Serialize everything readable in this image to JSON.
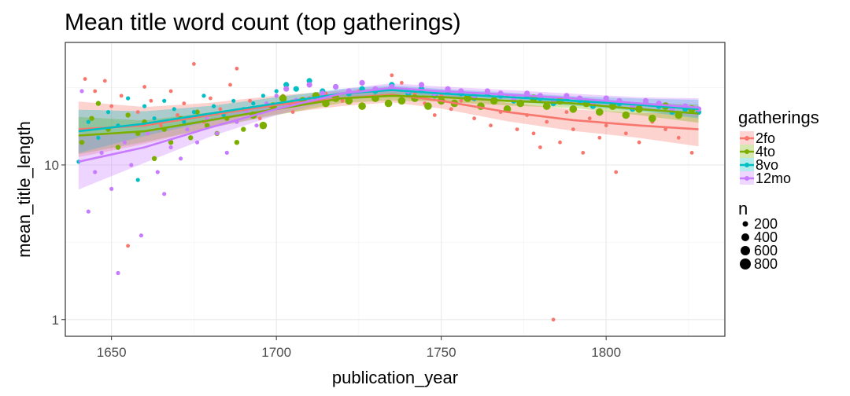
{
  "chart_data": {
    "type": "scatter",
    "title": "Mean title word count (top gatherings)",
    "xlabel": "publication_year",
    "ylabel": "mean_title_length",
    "xlim": [
      1636,
      1836
    ],
    "ylim": [
      0.78,
      62
    ],
    "y_scale": "log10",
    "x_ticks": [
      1650,
      1700,
      1750,
      1800
    ],
    "y_ticks": [
      1,
      10
    ],
    "grid": true,
    "legend_placement": "right",
    "colors": {
      "2fo": "#F8766D",
      "4to": "#7CAE00",
      "8vo": "#00BFC4",
      "12mo": "#C77CFF",
      "panel_border": "#333333",
      "grid_major": "#ebebeb",
      "grid_minor": "#f5f5f5"
    },
    "series": [
      {
        "name": "2fo",
        "smooth": [
          [
            1640,
            17
          ],
          [
            1660,
            18
          ],
          [
            1680,
            21
          ],
          [
            1700,
            24.5
          ],
          [
            1720,
            27
          ],
          [
            1735,
            28.5
          ],
          [
            1750,
            26
          ],
          [
            1770,
            22
          ],
          [
            1790,
            19.5
          ],
          [
            1810,
            18
          ],
          [
            1828,
            17
          ]
        ],
        "ci_width": [
          0.18,
          0.12,
          0.08,
          0.06,
          0.05,
          0.05,
          0.05,
          0.06,
          0.07,
          0.08,
          0.11
        ],
        "points": [
          [
            1642,
            36
          ],
          [
            1645,
            30
          ],
          [
            1648,
            35
          ],
          [
            1650,
            24
          ],
          [
            1653,
            28
          ],
          [
            1655,
            3
          ],
          [
            1658,
            22
          ],
          [
            1660,
            32
          ],
          [
            1662,
            26
          ],
          [
            1665,
            18
          ],
          [
            1668,
            30
          ],
          [
            1670,
            21
          ],
          [
            1672,
            25
          ],
          [
            1675,
            45
          ],
          [
            1678,
            19
          ],
          [
            1680,
            27
          ],
          [
            1683,
            23
          ],
          [
            1686,
            33
          ],
          [
            1688,
            42
          ],
          [
            1692,
            26
          ],
          [
            1695,
            20
          ],
          [
            1698,
            24
          ],
          [
            1702,
            28
          ],
          [
            1705,
            22
          ],
          [
            1710,
            27
          ],
          [
            1715,
            29
          ],
          [
            1720,
            26
          ],
          [
            1725,
            30
          ],
          [
            1730,
            27
          ],
          [
            1735,
            38
          ],
          [
            1738,
            34
          ],
          [
            1742,
            29
          ],
          [
            1745,
            25
          ],
          [
            1748,
            21
          ],
          [
            1750,
            28
          ],
          [
            1753,
            23
          ],
          [
            1756,
            26
          ],
          [
            1760,
            20
          ],
          [
            1762,
            24
          ],
          [
            1765,
            18
          ],
          [
            1768,
            22
          ],
          [
            1770,
            28
          ],
          [
            1773,
            17
          ],
          [
            1776,
            21
          ],
          [
            1778,
            16
          ],
          [
            1780,
            13
          ],
          [
            1782,
            19
          ],
          [
            1784,
            1
          ],
          [
            1786,
            14
          ],
          [
            1788,
            22
          ],
          [
            1790,
            17
          ],
          [
            1793,
            12
          ],
          [
            1795,
            20
          ],
          [
            1798,
            15
          ],
          [
            1800,
            18
          ],
          [
            1803,
            9
          ],
          [
            1806,
            16
          ],
          [
            1810,
            14
          ],
          [
            1814,
            19
          ],
          [
            1818,
            17
          ],
          [
            1822,
            15
          ],
          [
            1826,
            12
          ]
        ]
      },
      {
        "name": "4to",
        "smooth": [
          [
            1640,
            15.5
          ],
          [
            1660,
            16.5
          ],
          [
            1680,
            19.5
          ],
          [
            1700,
            23
          ],
          [
            1720,
            27
          ],
          [
            1735,
            28
          ],
          [
            1750,
            27.5
          ],
          [
            1770,
            26
          ],
          [
            1790,
            25
          ],
          [
            1810,
            23
          ],
          [
            1828,
            21.5
          ]
        ],
        "ci_width": [
          0.12,
          0.07,
          0.05,
          0.04,
          0.03,
          0.03,
          0.03,
          0.03,
          0.03,
          0.04,
          0.06
        ],
        "points": [
          [
            1641,
            14
          ],
          [
            1644,
            20
          ],
          [
            1646,
            25
          ],
          [
            1649,
            17
          ],
          [
            1652,
            13
          ],
          [
            1655,
            21
          ],
          [
            1658,
            16
          ],
          [
            1660,
            19
          ],
          [
            1663,
            11
          ],
          [
            1666,
            17
          ],
          [
            1668,
            14
          ],
          [
            1671,
            20
          ],
          [
            1674,
            15
          ],
          [
            1676,
            22
          ],
          [
            1679,
            18
          ],
          [
            1682,
            16
          ],
          [
            1685,
            20
          ],
          [
            1688,
            14
          ],
          [
            1690,
            17
          ],
          [
            1693,
            21
          ],
          [
            1696,
            18
          ],
          [
            1699,
            24
          ],
          [
            1702,
            27
          ],
          [
            1705,
            25
          ],
          [
            1708,
            26
          ],
          [
            1712,
            28
          ],
          [
            1715,
            25
          ],
          [
            1718,
            27
          ],
          [
            1722,
            26
          ],
          [
            1726,
            24
          ],
          [
            1730,
            27
          ],
          [
            1734,
            25
          ],
          [
            1738,
            26
          ],
          [
            1742,
            27
          ],
          [
            1746,
            24
          ],
          [
            1750,
            26
          ],
          [
            1754,
            25
          ],
          [
            1758,
            27
          ],
          [
            1762,
            24
          ],
          [
            1766,
            26
          ],
          [
            1770,
            23
          ],
          [
            1774,
            25
          ],
          [
            1778,
            27
          ],
          [
            1782,
            24
          ],
          [
            1786,
            26
          ],
          [
            1790,
            23
          ],
          [
            1794,
            25
          ],
          [
            1798,
            22
          ],
          [
            1802,
            24
          ],
          [
            1806,
            21
          ],
          [
            1810,
            23
          ],
          [
            1814,
            20
          ],
          [
            1818,
            24
          ],
          [
            1822,
            21
          ],
          [
            1826,
            23
          ]
        ]
      },
      {
        "name": "8vo",
        "smooth": [
          [
            1640,
            16.5
          ],
          [
            1660,
            18.5
          ],
          [
            1680,
            21.5
          ],
          [
            1700,
            25
          ],
          [
            1720,
            29
          ],
          [
            1735,
            30.5
          ],
          [
            1750,
            29
          ],
          [
            1770,
            27.5
          ],
          [
            1790,
            26
          ],
          [
            1810,
            24.5
          ],
          [
            1828,
            23
          ]
        ],
        "ci_width": [
          0.14,
          0.08,
          0.05,
          0.04,
          0.03,
          0.03,
          0.03,
          0.03,
          0.03,
          0.04,
          0.06
        ],
        "points": [
          [
            1640,
            10.5
          ],
          [
            1643,
            19
          ],
          [
            1646,
            15
          ],
          [
            1649,
            22
          ],
          [
            1652,
            18
          ],
          [
            1655,
            27
          ],
          [
            1658,
            8
          ],
          [
            1660,
            24
          ],
          [
            1663,
            20
          ],
          [
            1666,
            26
          ],
          [
            1669,
            23
          ],
          [
            1672,
            19
          ],
          [
            1675,
            22
          ],
          [
            1678,
            28
          ],
          [
            1681,
            24
          ],
          [
            1684,
            21
          ],
          [
            1687,
            26
          ],
          [
            1690,
            23
          ],
          [
            1693,
            25
          ],
          [
            1696,
            28
          ],
          [
            1700,
            30
          ],
          [
            1703,
            33
          ],
          [
            1706,
            31
          ],
          [
            1710,
            35
          ],
          [
            1714,
            30
          ],
          [
            1718,
            32
          ],
          [
            1722,
            29
          ],
          [
            1726,
            31
          ],
          [
            1730,
            30
          ],
          [
            1735,
            33
          ],
          [
            1740,
            29
          ],
          [
            1744,
            31
          ],
          [
            1748,
            28
          ],
          [
            1752,
            30
          ],
          [
            1756,
            29
          ],
          [
            1760,
            27
          ],
          [
            1764,
            29
          ],
          [
            1768,
            28
          ],
          [
            1772,
            26
          ],
          [
            1776,
            28
          ],
          [
            1780,
            27
          ],
          [
            1784,
            25
          ],
          [
            1788,
            27
          ],
          [
            1792,
            26
          ],
          [
            1796,
            24
          ],
          [
            1800,
            26
          ],
          [
            1804,
            25
          ],
          [
            1808,
            23
          ],
          [
            1812,
            25
          ],
          [
            1816,
            24
          ],
          [
            1820,
            22
          ],
          [
            1824,
            23
          ],
          [
            1828,
            22
          ]
        ]
      },
      {
        "name": "12mo",
        "smooth": [
          [
            1640,
            10.5
          ],
          [
            1660,
            13
          ],
          [
            1680,
            17.5
          ],
          [
            1700,
            23
          ],
          [
            1720,
            29
          ],
          [
            1735,
            31.5
          ],
          [
            1750,
            30
          ],
          [
            1770,
            28.5
          ],
          [
            1790,
            27
          ],
          [
            1810,
            25
          ],
          [
            1828,
            23.5
          ]
        ],
        "ci_width": [
          0.18,
          0.1,
          0.06,
          0.04,
          0.03,
          0.03,
          0.03,
          0.03,
          0.03,
          0.04,
          0.06
        ],
        "points": [
          [
            1641,
            30
          ],
          [
            1643,
            5
          ],
          [
            1645,
            9
          ],
          [
            1647,
            12
          ],
          [
            1650,
            7
          ],
          [
            1652,
            2
          ],
          [
            1654,
            14
          ],
          [
            1656,
            10
          ],
          [
            1659,
            3.5
          ],
          [
            1661,
            16
          ],
          [
            1664,
            9
          ],
          [
            1666,
            6.5
          ],
          [
            1668,
            13
          ],
          [
            1671,
            11
          ],
          [
            1673,
            17
          ],
          [
            1676,
            14
          ],
          [
            1679,
            20
          ],
          [
            1682,
            16
          ],
          [
            1685,
            12
          ],
          [
            1688,
            19
          ],
          [
            1691,
            22
          ],
          [
            1694,
            18
          ],
          [
            1697,
            25
          ],
          [
            1700,
            28
          ],
          [
            1703,
            31
          ],
          [
            1706,
            26
          ],
          [
            1710,
            33
          ],
          [
            1714,
            29
          ],
          [
            1718,
            32
          ],
          [
            1722,
            30
          ],
          [
            1726,
            34
          ],
          [
            1730,
            31
          ],
          [
            1735,
            32
          ],
          [
            1740,
            30
          ],
          [
            1744,
            33
          ],
          [
            1748,
            29
          ],
          [
            1752,
            31
          ],
          [
            1756,
            30
          ],
          [
            1760,
            28
          ],
          [
            1764,
            30
          ],
          [
            1768,
            29
          ],
          [
            1772,
            27
          ],
          [
            1776,
            29
          ],
          [
            1780,
            28
          ],
          [
            1784,
            26
          ],
          [
            1788,
            28
          ],
          [
            1792,
            27
          ],
          [
            1796,
            25
          ],
          [
            1800,
            27
          ],
          [
            1804,
            26
          ],
          [
            1808,
            24
          ],
          [
            1812,
            26
          ],
          [
            1816,
            25
          ],
          [
            1820,
            23
          ],
          [
            1824,
            24
          ],
          [
            1828,
            23
          ]
        ]
      }
    ],
    "legends": {
      "color_title": "gatherings",
      "color_items": [
        "2fo",
        "4to",
        "8vo",
        "12mo"
      ],
      "size_title": "n",
      "size_items": [
        "200",
        "400",
        "600",
        "800"
      ]
    }
  }
}
